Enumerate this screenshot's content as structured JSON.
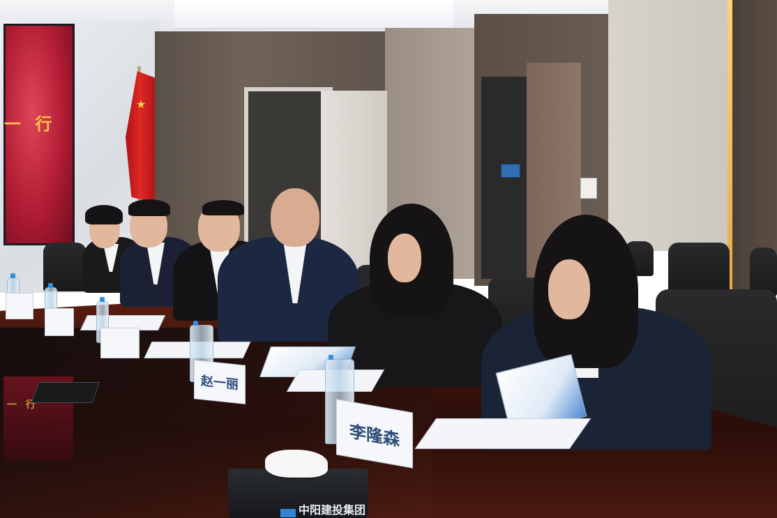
{
  "photo": {
    "screen_text": "一 行",
    "screen_reflection_text": "一 行",
    "name_cards": [
      {
        "id": "card-1",
        "text": ""
      },
      {
        "id": "card-2",
        "text": ""
      },
      {
        "id": "card-3",
        "text": ""
      },
      {
        "id": "card-4",
        "text": "赵一丽"
      },
      {
        "id": "card-5",
        "text": "李隆森"
      }
    ],
    "tissue_box_brand": "中阳建投集团",
    "colors": {
      "table_wood": "#3c140c",
      "flag_red": "#de2a22",
      "screen_red": "#b01c33",
      "wood_panel": "#6e6259",
      "booklet_blue": "#4e88d2"
    }
  }
}
